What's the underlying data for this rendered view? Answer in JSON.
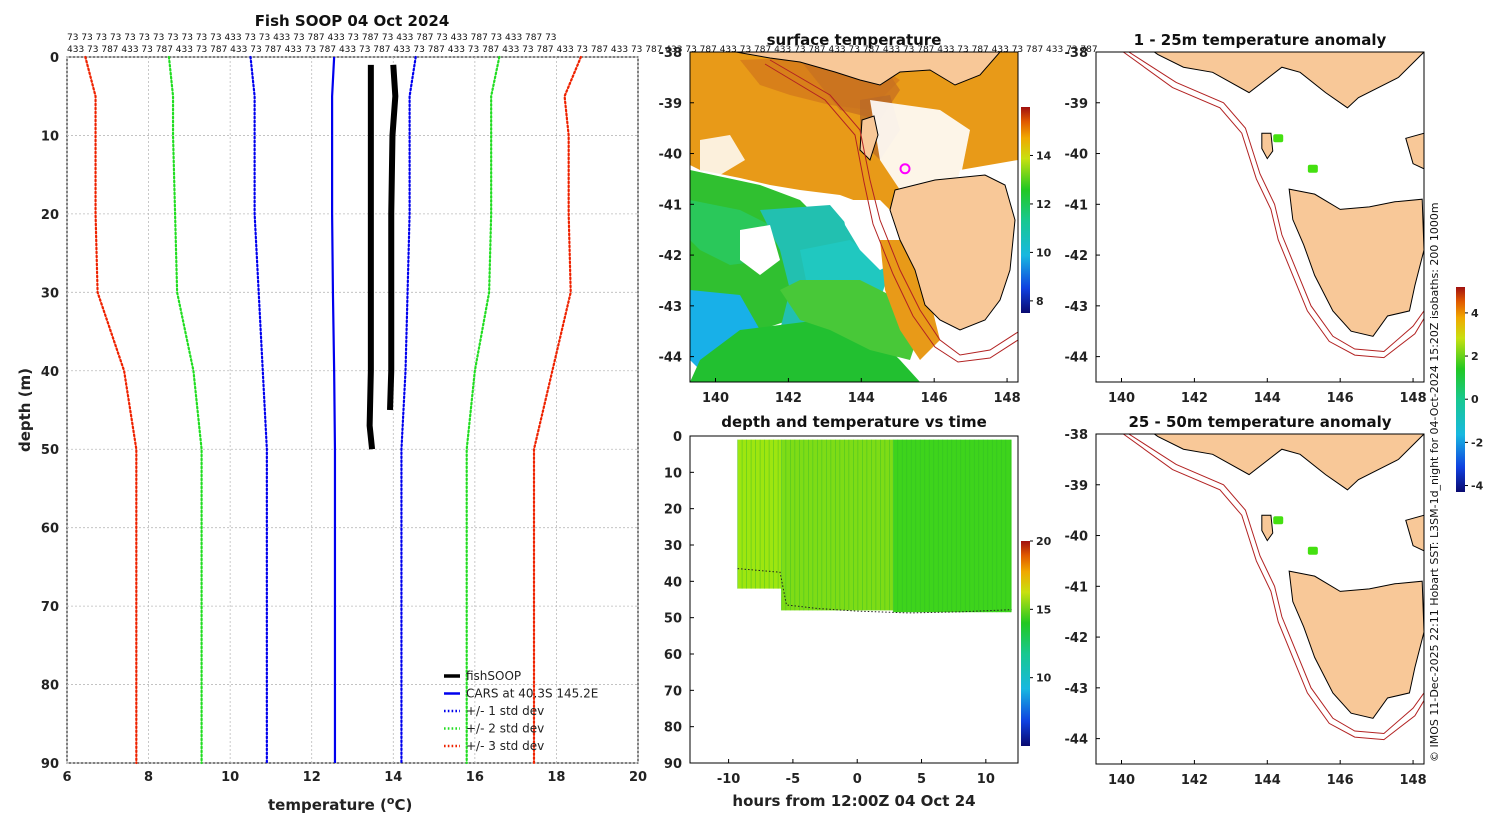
{
  "colors": {
    "fishsoop": "#000000",
    "cars": "#0000ee",
    "std1": "#0000ee",
    "std2": "#22dd22",
    "std3": "#ee2200",
    "land": "#f8c898",
    "isobath": "#b22222",
    "marker": "#ff00ff"
  },
  "copyright": "© IMOS 11-Dec-2025 22:11 Hobart SST: L3SM-1d_night for 04-Oct-2024 15:20Z isobaths: 200  1000m",
  "profile": {
    "title": "Fish SOOP 04 Oct 2024",
    "xlabel": "temperature (",
    "xlabel_unit": "o",
    "xlabel_end": "C)",
    "ylabel": "depth (m)",
    "header_row1": "73 73 73 73 73 73 73 73 73 73 73 433 73 73 433 73 787 433 73 787 73 433 787 73 433 787 73 433 787 73",
    "header_row2": "433 73 787 433 73 787 433 73 787 433 73 787 433 73 787 433 73 787 433 73 787 433 73 787 433 73 787 433 73 787 433 73 787 433 73 787 433 73 787 433 73 787 433 73 787 433 73 787 433 73 787 433 73 787 433 73 787",
    "legend": [
      {
        "key": "fishsoop",
        "label": "fishSOOP"
      },
      {
        "key": "cars",
        "label": "CARS at 40.3S 145.2E"
      },
      {
        "key": "std1",
        "label": "+/- 1 std dev"
      },
      {
        "key": "std2",
        "label": "+/- 2 std dev"
      },
      {
        "key": "std3",
        "label": "+/- 3 std dev"
      }
    ]
  },
  "chart_data": [
    {
      "type": "line",
      "title": "Fish SOOP 04 Oct 2024",
      "xlabel": "temperature (oC)",
      "ylabel": "depth (m)",
      "xlim": [
        6,
        20
      ],
      "ylim": [
        90,
        0
      ],
      "xticks": [
        6,
        8,
        10,
        12,
        14,
        16,
        18,
        20
      ],
      "yticks": [
        0,
        10,
        20,
        30,
        40,
        50,
        60,
        70,
        80,
        90
      ],
      "grid": true,
      "legend_position": "bottom-right",
      "depth": [
        0,
        5,
        10,
        20,
        30,
        40,
        50,
        60,
        70,
        80,
        90
      ],
      "series": [
        {
          "name": "CARS at 40.3S 145.2E",
          "key": "cars",
          "style": "solid",
          "temp": [
            12.55,
            12.5,
            12.5,
            12.5,
            12.52,
            12.55,
            12.57,
            12.57,
            12.57,
            12.57,
            12.57
          ]
        },
        {
          "name": "+/- 1 std dev low",
          "key": "std1",
          "style": "dotted",
          "temp": [
            10.5,
            10.6,
            10.6,
            10.6,
            10.7,
            10.8,
            10.9,
            10.9,
            10.9,
            10.9,
            10.9
          ]
        },
        {
          "name": "+/- 1 std dev high",
          "key": "std1",
          "style": "dotted",
          "temp": [
            14.55,
            14.4,
            14.4,
            14.4,
            14.35,
            14.3,
            14.2,
            14.2,
            14.2,
            14.2,
            14.2
          ]
        },
        {
          "name": "+/- 2 std dev low",
          "key": "std2",
          "style": "dotted",
          "temp": [
            8.5,
            8.6,
            8.6,
            8.65,
            8.7,
            9.1,
            9.3,
            9.3,
            9.3,
            9.3,
            9.3
          ]
        },
        {
          "name": "+/- 2 std dev high",
          "key": "std2",
          "style": "dotted",
          "temp": [
            16.6,
            16.4,
            16.4,
            16.4,
            16.35,
            16.0,
            15.8,
            15.8,
            15.8,
            15.8,
            15.8
          ]
        },
        {
          "name": "+/- 3 std dev low",
          "key": "std3",
          "style": "dotted",
          "temp": [
            6.45,
            6.7,
            6.7,
            6.7,
            6.75,
            7.4,
            7.7,
            7.7,
            7.7,
            7.7,
            7.7
          ]
        },
        {
          "name": "+/- 3 std dev high",
          "key": "std3",
          "style": "dotted",
          "temp": [
            18.6,
            18.2,
            18.3,
            18.3,
            18.35,
            17.9,
            17.45,
            17.45,
            17.45,
            17.45,
            17.45
          ]
        }
      ],
      "fishsoop_profiles": [
        {
          "name": "fishSOOP cast 1",
          "depth": [
            1,
            10,
            20,
            30,
            40,
            47,
            50
          ],
          "temp": [
            13.45,
            13.45,
            13.45,
            13.45,
            13.45,
            13.42,
            13.48
          ]
        },
        {
          "name": "fishSOOP cast 2",
          "depth": [
            1,
            5,
            10,
            20,
            30,
            40,
            45
          ],
          "temp": [
            14.0,
            14.05,
            13.98,
            13.95,
            13.95,
            13.95,
            13.92
          ]
        }
      ]
    },
    {
      "type": "heatmap",
      "title": "surface temperature",
      "xticks": [
        140,
        142,
        144,
        146,
        148
      ],
      "yticks": [
        -38,
        -39,
        -40,
        -41,
        -42,
        -43,
        -44
      ],
      "xlim": [
        139.3,
        148.3
      ],
      "ylim": [
        -44.5,
        -38
      ],
      "colorbar": {
        "min": 7.5,
        "max": 16,
        "ticks": [
          8,
          10,
          12,
          14
        ]
      },
      "marker": {
        "lon": 145.2,
        "lat": -40.3
      }
    },
    {
      "type": "scatter",
      "title": "depth and temperature vs time",
      "xlabel": "hours from 12:00Z 04 Oct 24",
      "xlim": [
        -13,
        12.5
      ],
      "ylim": [
        90,
        0
      ],
      "xticks": [
        -10,
        -5,
        0,
        5,
        10
      ],
      "yticks": [
        0,
        10,
        20,
        30,
        40,
        50,
        60,
        70,
        80,
        90
      ],
      "colorbar": {
        "min": 5,
        "max": 20,
        "ticks": [
          10,
          15,
          20
        ]
      },
      "segments": [
        {
          "start": -9.3,
          "end": -5.9,
          "max_depth": 42,
          "temp": 15.5
        },
        {
          "start": -5.9,
          "end": 2.8,
          "max_depth": 48,
          "temp": 15.2
        },
        {
          "start": 2.8,
          "end": 12.0,
          "max_depth": 48.5,
          "temp": 13.8
        }
      ],
      "bottom_depth": [
        {
          "hour": -9.3,
          "depth": 36.5
        },
        {
          "hour": -6,
          "depth": 37.5
        },
        {
          "hour": -5.5,
          "depth": 46.5
        },
        {
          "hour": -3,
          "depth": 47.5
        },
        {
          "hour": 0,
          "depth": 48.2
        },
        {
          "hour": 4,
          "depth": 48.7
        },
        {
          "hour": 8,
          "depth": 48.4
        },
        {
          "hour": 12,
          "depth": 47.8
        }
      ]
    },
    {
      "type": "heatmap",
      "title": "1 - 25m temperature anomaly",
      "xticks": [
        140,
        142,
        144,
        146,
        148
      ],
      "yticks": [
        -38,
        -39,
        -40,
        -41,
        -42,
        -43,
        -44
      ],
      "xlim": [
        139.3,
        148.3
      ],
      "ylim": [
        -44.5,
        -38
      ],
      "colorbar": {
        "min": -4.3,
        "max": 5.2,
        "ticks": [
          -4,
          -2,
          0,
          2,
          4
        ]
      },
      "points": [
        {
          "lon": 144.3,
          "lat": -39.7,
          "anomaly": 0.5
        },
        {
          "lon": 145.25,
          "lat": -40.3,
          "anomaly": 0.5
        }
      ]
    },
    {
      "type": "heatmap",
      "title": "25 - 50m temperature anomaly",
      "xticks": [
        140,
        142,
        144,
        146,
        148
      ],
      "yticks": [
        -38,
        -39,
        -40,
        -41,
        -42,
        -43,
        -44
      ],
      "xlim": [
        139.3,
        148.3
      ],
      "ylim": [
        -44.5,
        -38
      ],
      "points": [
        {
          "lon": 144.3,
          "lat": -39.7,
          "anomaly": 0.5
        },
        {
          "lon": 145.25,
          "lat": -40.3,
          "anomaly": 0.5
        }
      ]
    }
  ]
}
